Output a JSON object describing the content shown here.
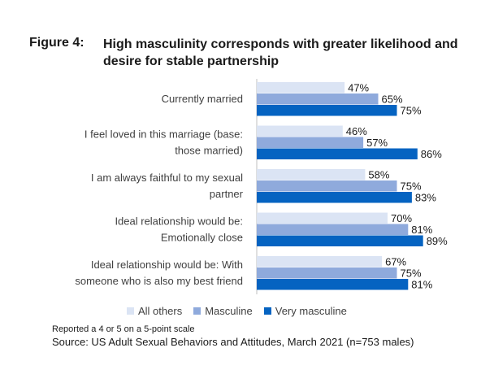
{
  "figure_label": "Figure 4:",
  "figure_title": "High masculinity corresponds with greater likelihood and desire for stable partnership",
  "note": "Reported a 4 or 5 on a 5-point scale",
  "source": "Source: US Adult Sexual Behaviors and Attitudes, March 2021 (n=753 males)",
  "colors": {
    "all_others": "#dbe4f4",
    "masculine": "#8faadc",
    "very_masculine": "#0563c1",
    "axis": "#bfbfbf"
  },
  "chart_data": {
    "type": "bar",
    "orientation": "horizontal",
    "title": "High masculinity corresponds with greater likelihood and desire for stable partnership",
    "xlabel": "",
    "ylabel": "",
    "xlim": [
      0,
      100
    ],
    "grid": false,
    "legend_position": "bottom",
    "categories": [
      [
        "Currently married"
      ],
      [
        "I feel loved in this marriage (base:",
        "those married)"
      ],
      [
        "I am always faithful to my sexual",
        "partner"
      ],
      [
        "Ideal relationship would be:",
        "Emotionally close"
      ],
      [
        "Ideal relationship would be: With",
        "someone who is also my best friend"
      ]
    ],
    "series": [
      {
        "name": "All others",
        "color": "#dbe4f4",
        "values": [
          47,
          46,
          58,
          70,
          67
        ]
      },
      {
        "name": "Masculine",
        "color": "#8faadc",
        "values": [
          65,
          57,
          75,
          81,
          75
        ]
      },
      {
        "name": "Very masculine",
        "color": "#0563c1",
        "values": [
          75,
          86,
          83,
          89,
          81
        ]
      }
    ],
    "value_suffix": "%"
  }
}
